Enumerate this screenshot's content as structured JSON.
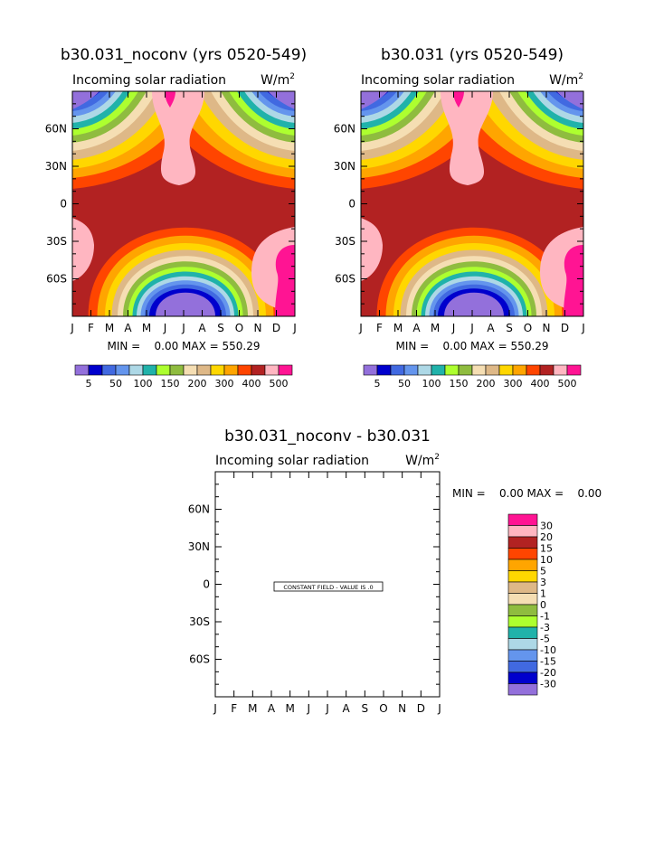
{
  "chart_data": [
    {
      "type": "heatmap",
      "title": "b30.031_noconv (yrs 0520-549)",
      "subtitle": "Incoming solar radiation",
      "units": "W/m",
      "units_sup": "2",
      "x_ticks": [
        "J",
        "F",
        "M",
        "A",
        "M",
        "J",
        "J",
        "A",
        "S",
        "O",
        "N",
        "D",
        "J"
      ],
      "y_ticks": [
        "60N",
        "30N",
        "0",
        "30S",
        "60S"
      ],
      "y_tick_values": [
        60,
        30,
        0,
        -30,
        -60
      ],
      "ylim": [
        -90,
        90
      ],
      "stats": "MIN =    0.00 MAX = 550.29",
      "min": 0.0,
      "max": 550.29,
      "colorbar_labels": [
        "5",
        "50",
        "100",
        "150",
        "200",
        "300",
        "400",
        "500"
      ],
      "colors": [
        "#9370db",
        "#0000cd",
        "#4169e1",
        "#6495ed",
        "#add8e6",
        "#20b2aa",
        "#adff2f",
        "#8fbc3f",
        "#f5deb3",
        "#deb887",
        "#ffd700",
        "#ffa500",
        "#ff4500",
        "#b22222",
        "#ffb6c1",
        "#ff1493"
      ]
    },
    {
      "type": "heatmap",
      "title": "b30.031 (yrs 0520-549)",
      "subtitle": "Incoming solar radiation",
      "units": "W/m",
      "units_sup": "2",
      "x_ticks": [
        "J",
        "F",
        "M",
        "A",
        "M",
        "J",
        "J",
        "A",
        "S",
        "O",
        "N",
        "D",
        "J"
      ],
      "y_ticks": [
        "60N",
        "30N",
        "0",
        "30S",
        "60S"
      ],
      "y_tick_values": [
        60,
        30,
        0,
        -30,
        -60
      ],
      "ylim": [
        -90,
        90
      ],
      "stats": "MIN =    0.00 MAX = 550.29",
      "min": 0.0,
      "max": 550.29,
      "colorbar_labels": [
        "5",
        "50",
        "100",
        "150",
        "200",
        "300",
        "400",
        "500"
      ],
      "colors": [
        "#9370db",
        "#0000cd",
        "#4169e1",
        "#6495ed",
        "#add8e6",
        "#20b2aa",
        "#adff2f",
        "#8fbc3f",
        "#f5deb3",
        "#deb887",
        "#ffd700",
        "#ffa500",
        "#ff4500",
        "#b22222",
        "#ffb6c1",
        "#ff1493"
      ]
    },
    {
      "type": "heatmap",
      "title": "b30.031_noconv - b30.031",
      "subtitle": "Incoming solar radiation",
      "units": "W/m",
      "units_sup": "2",
      "x_ticks": [
        "J",
        "F",
        "M",
        "A",
        "M",
        "J",
        "J",
        "A",
        "S",
        "O",
        "N",
        "D",
        "J"
      ],
      "y_ticks": [
        "60N",
        "30N",
        "0",
        "30S",
        "60S"
      ],
      "y_tick_values": [
        60,
        30,
        0,
        -30,
        -60
      ],
      "ylim": [
        -90,
        90
      ],
      "stats": "MIN =    0.00 MAX =    0.00",
      "min": 0.0,
      "max": 0.0,
      "constant_field_label": "CONSTANT FIELD - VALUE IS .0",
      "colorbar_labels": [
        "30",
        "20",
        "15",
        "10",
        "5",
        "3",
        "1",
        "0",
        "-1",
        "-3",
        "-5",
        "-10",
        "-15",
        "-20",
        "-30"
      ],
      "colors": [
        "#ff1493",
        "#ffb6c1",
        "#b22222",
        "#ff4500",
        "#ffa500",
        "#ffd700",
        "#deb887",
        "#f5deb3",
        "#8fbc3f",
        "#adff2f",
        "#20b2aa",
        "#add8e6",
        "#6495ed",
        "#4169e1",
        "#0000cd",
        "#9370db"
      ]
    }
  ]
}
